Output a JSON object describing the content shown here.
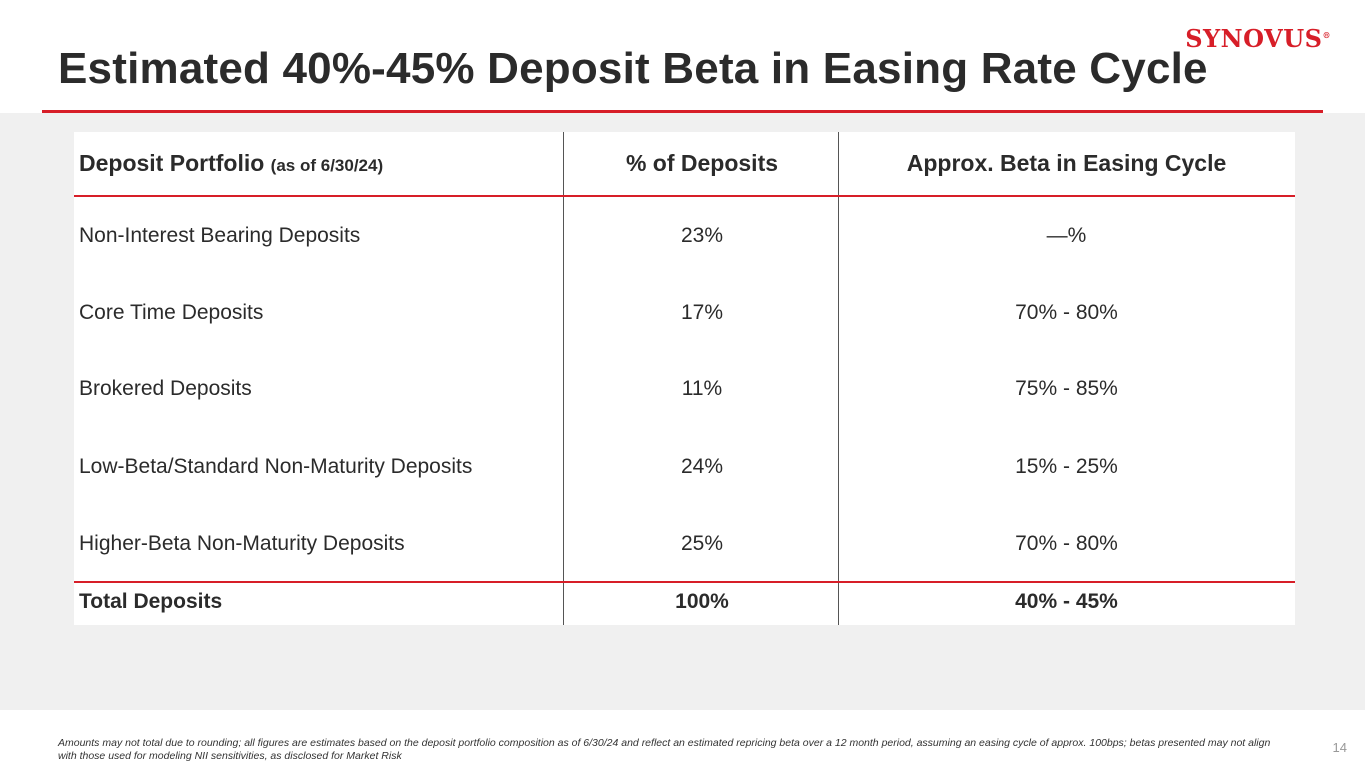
{
  "header": {
    "title": "Estimated 40%-45% Deposit Beta in Easing Rate Cycle",
    "logo_text": "SYNOVUS",
    "logo_mark": "®"
  },
  "table": {
    "headers": {
      "col1": "Deposit Portfolio",
      "col1_note": "(as of 6/30/24)",
      "col2": "% of Deposits",
      "col3": "Approx. Beta in Easing Cycle"
    },
    "rows": [
      {
        "label": "Non-Interest Bearing Deposits",
        "pct": "23%",
        "beta": "—%"
      },
      {
        "label": "Core Time Deposits",
        "pct": "17%",
        "beta": "70% - 80%"
      },
      {
        "label": "Brokered Deposits",
        "pct": "11%",
        "beta": "75% - 85%"
      },
      {
        "label": "Low-Beta/Standard Non-Maturity Deposits",
        "pct": "24%",
        "beta": "15% - 25%"
      },
      {
        "label": "Higher-Beta Non-Maturity Deposits",
        "pct": "25%",
        "beta": "70% - 80%"
      }
    ],
    "total": {
      "label": "Total Deposits",
      "pct": "100%",
      "beta": "40% - 45%"
    }
  },
  "footer": {
    "footnote": "Amounts may not total due to rounding; all figures are estimates based on the deposit portfolio composition as of 6/30/24 and reflect an estimated repricing beta over a 12 month period, assuming an easing cycle of approx. 100bps; betas presented may not align with those used for modeling NII sensitivities, as disclosed for Market Risk",
    "page_number": "14"
  },
  "colors": {
    "accent": "#d71e28",
    "title": "#2b2b2b",
    "background_band": "#f0f0f0"
  }
}
